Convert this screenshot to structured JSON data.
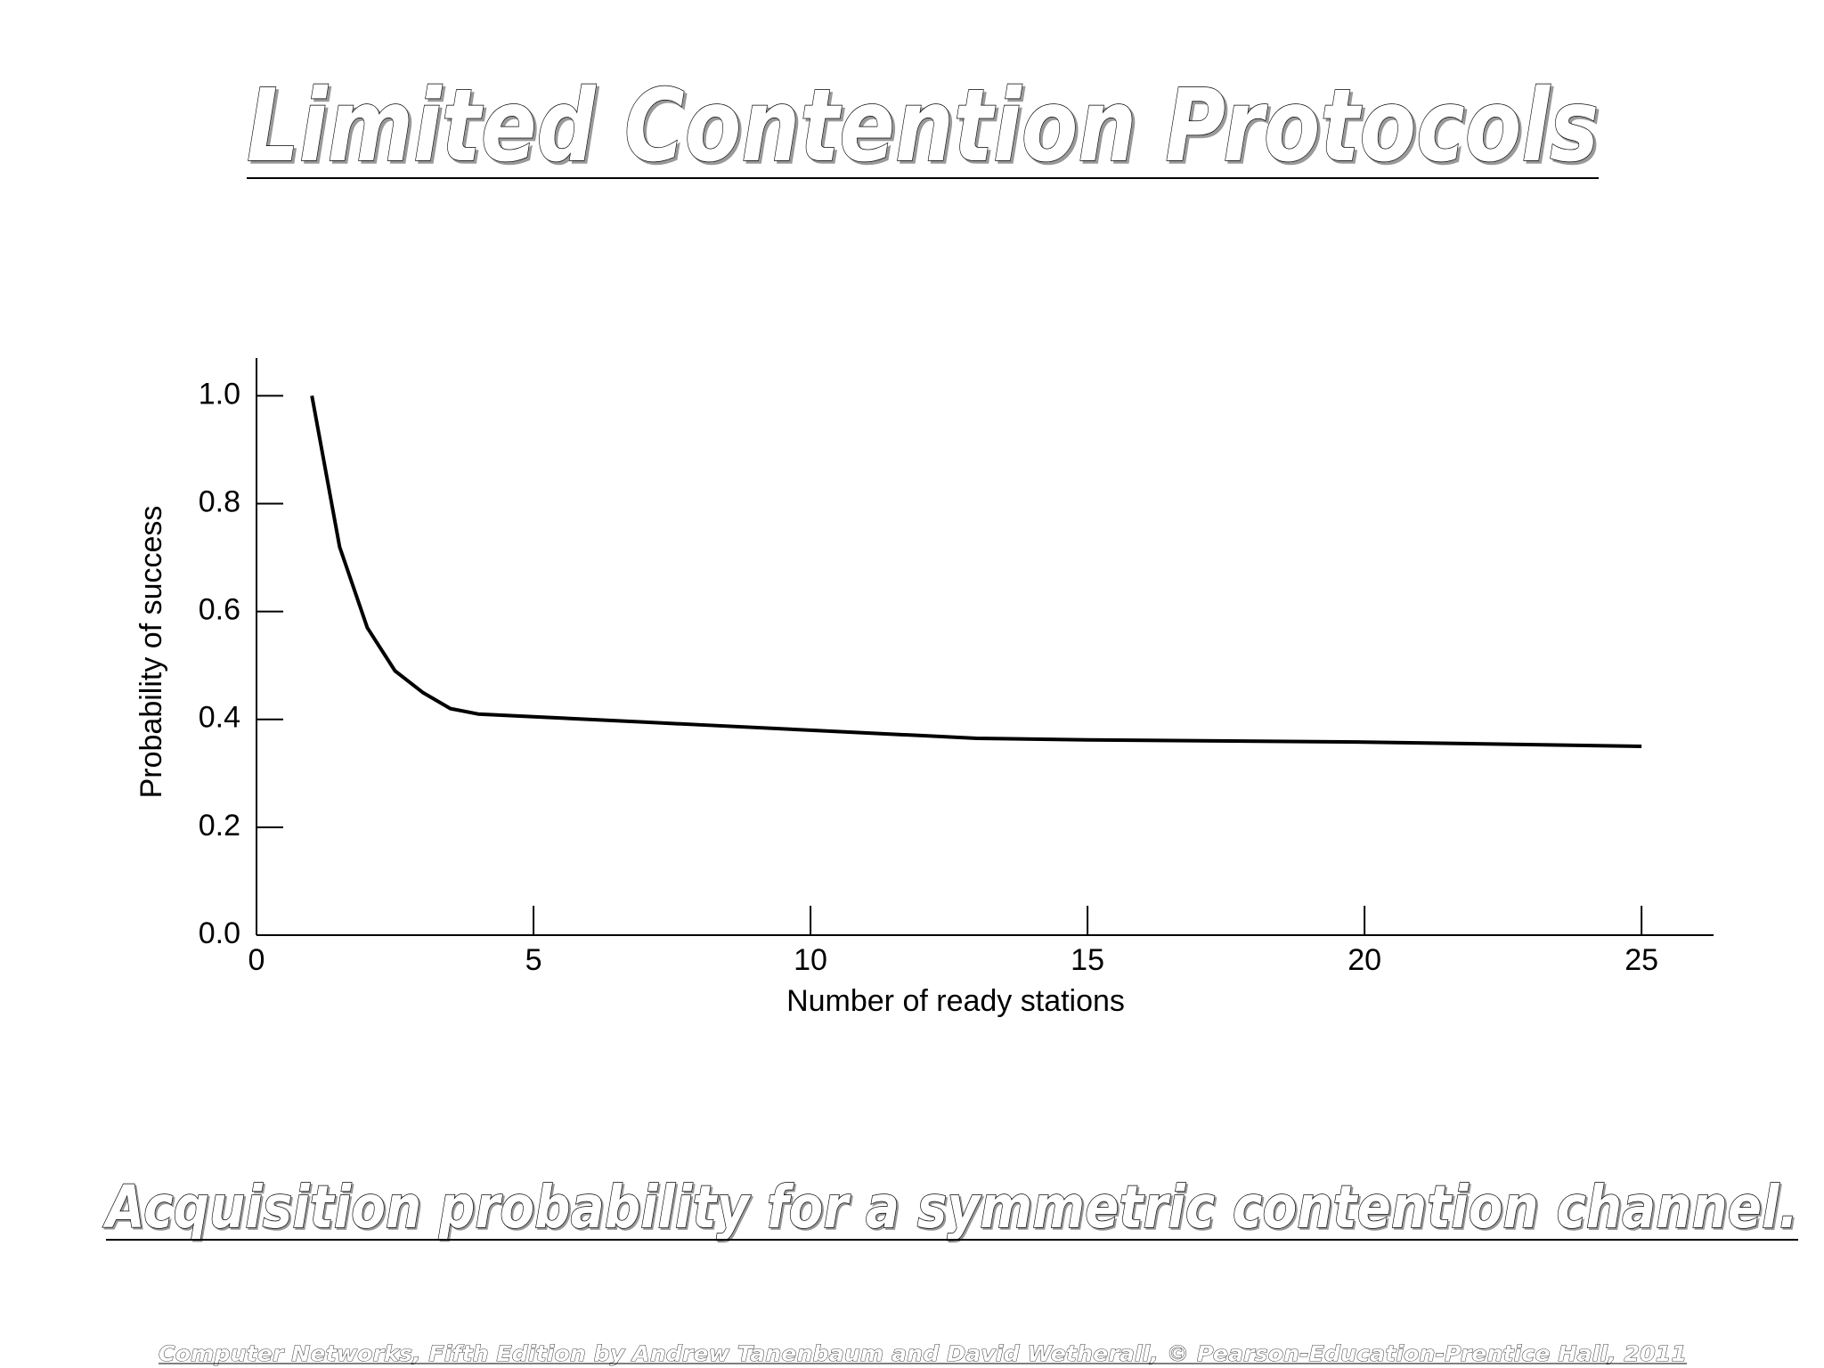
{
  "slide": {
    "title": "Limited Contention Protocols",
    "caption": "Acquisition probability for a symmetric contention channel.",
    "footer": "Computer Networks, Fifth Edition by Andrew Tanenbaum and David Wetherall, © Pearson-Education-Prentice Hall, 2011"
  },
  "chart_data": {
    "type": "line",
    "x_label": "Number of ready stations",
    "y_label": "Probability of success",
    "x": [
      1,
      1.5,
      2,
      2.5,
      3,
      3.5,
      4,
      5,
      6,
      7,
      8,
      10,
      12,
      13,
      15,
      20,
      25
    ],
    "series": [
      {
        "color": "#000000",
        "values": [
          1.0,
          0.72,
          0.57,
          0.49,
          0.45,
          0.42,
          0.41,
          0.405,
          0.4,
          0.395,
          0.39,
          0.38,
          0.37,
          0.365,
          0.362,
          0.358,
          0.35
        ]
      }
    ],
    "xlim": [
      0,
      26.3
    ],
    "ylim": [
      0,
      1.07
    ],
    "xticks": [
      0,
      5,
      10,
      15,
      20,
      25
    ],
    "yticks": [
      {
        "value": 0,
        "label": "0.0"
      },
      0.2,
      0.4,
      0.6,
      0.8,
      {
        "value": 1,
        "label": "1.0"
      }
    ]
  }
}
